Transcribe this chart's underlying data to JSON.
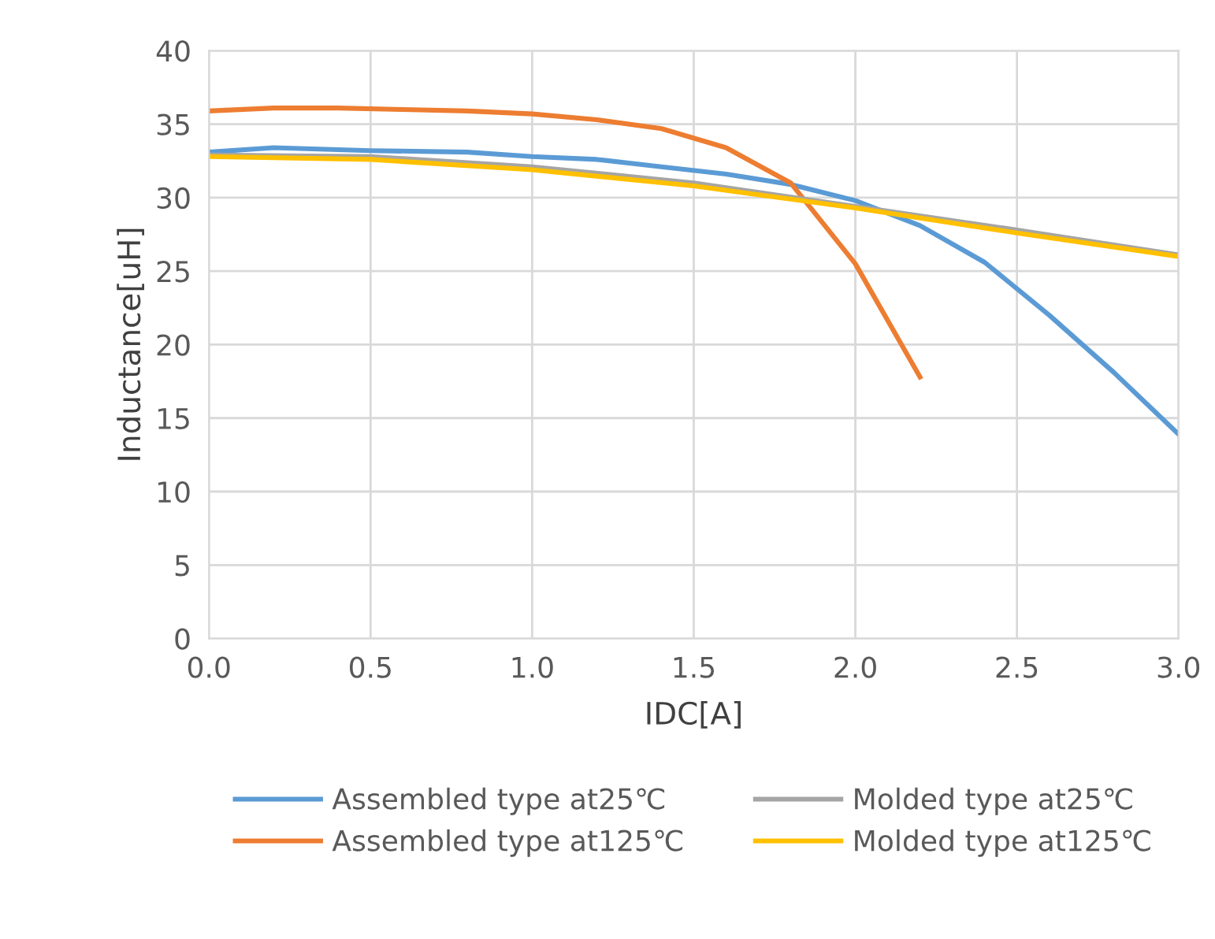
{
  "chart_data": {
    "type": "line",
    "xlabel": "IDC[A]",
    "ylabel": "Inductance[uH]",
    "xlim": [
      0,
      3
    ],
    "xticks": [
      {
        "value": 0,
        "label": "0.0"
      },
      {
        "value": 0.5,
        "label": "0.5"
      },
      {
        "value": 1,
        "label": "1.0"
      },
      {
        "value": 1.5,
        "label": "1.5"
      },
      {
        "value": 2,
        "label": "2.0"
      },
      {
        "value": 2.5,
        "label": "2.5"
      },
      {
        "value": 3,
        "label": "3.0"
      }
    ],
    "ylim": [
      0,
      40
    ],
    "yticks": [
      0,
      5,
      10,
      15,
      20,
      25,
      30,
      35,
      40
    ],
    "grid": true,
    "legend": "bottom",
    "marker": "none",
    "line_style": "solid",
    "series": [
      {
        "name": "Assembled type at25℃",
        "color": "#5b9bd5",
        "x": [
          0,
          0.2,
          0.5,
          0.8,
          1.0,
          1.2,
          1.4,
          1.6,
          1.8,
          2.0,
          2.2,
          2.4,
          2.6,
          2.8,
          3.0
        ],
        "values": [
          33.1,
          33.4,
          33.2,
          33.1,
          32.8,
          32.6,
          32.1,
          31.6,
          30.9,
          29.8,
          28.1,
          25.6,
          22.0,
          18.1,
          13.9
        ]
      },
      {
        "name": "Assembled type at125℃",
        "color": "#ed7d31",
        "x": [
          0,
          0.2,
          0.4,
          0.6,
          0.8,
          1.0,
          1.2,
          1.4,
          1.6,
          1.8,
          2.0,
          2.2
        ],
        "values": [
          35.9,
          36.1,
          36.1,
          36.0,
          35.9,
          35.7,
          35.3,
          34.7,
          33.4,
          31.0,
          25.5,
          17.8
        ]
      },
      {
        "name": "Molded type at25℃",
        "color": "#a5a5a5",
        "x": [
          0,
          0.5,
          1.0,
          1.5,
          2.0,
          2.5,
          3.0
        ],
        "values": [
          32.9,
          32.8,
          32.1,
          31.0,
          29.4,
          27.8,
          26.1
        ]
      },
      {
        "name": "Molded type at125℃",
        "color": "#ffc000",
        "x": [
          0,
          0.5,
          1.0,
          1.5,
          2.0,
          2.5,
          3.0
        ],
        "values": [
          32.8,
          32.6,
          31.9,
          30.8,
          29.3,
          27.6,
          26.0
        ]
      }
    ]
  }
}
